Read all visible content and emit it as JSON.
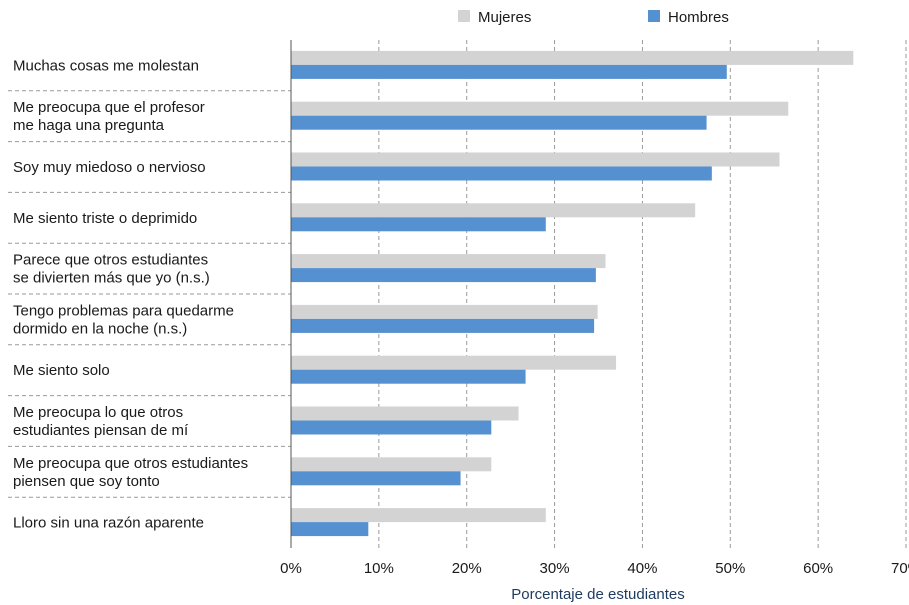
{
  "chart_data": {
    "type": "bar",
    "orientation": "horizontal",
    "categories": [
      [
        "Muchas cosas me molestan"
      ],
      [
        "Me preocupa que el profesor",
        "me haga una pregunta"
      ],
      [
        "Soy muy miedoso o nervioso"
      ],
      [
        "Me siento triste o deprimido"
      ],
      [
        "Parece que otros estudiantes",
        "se divierten más que yo (n.s.)"
      ],
      [
        "Tengo problemas para quedarme",
        "dormido en la noche (n.s.)"
      ],
      [
        "Me siento solo"
      ],
      [
        "Me preocupa lo que otros",
        "estudiantes piensan de mí"
      ],
      [
        "Me preocupa que otros estudiantes",
        "piensen que soy tonto"
      ],
      [
        "Lloro sin una razón aparente"
      ]
    ],
    "series": [
      {
        "name": "Mujeres",
        "color": "#d3d3d3",
        "values": [
          64,
          56.6,
          55.6,
          46,
          35.8,
          34.9,
          37,
          25.9,
          22.8,
          29
        ]
      },
      {
        "name": "Hombres",
        "color": "#5590d0",
        "values": [
          49.6,
          47.3,
          47.9,
          29,
          34.7,
          34.5,
          26.7,
          22.8,
          19.3,
          8.8
        ]
      }
    ],
    "xlim": [
      0,
      70
    ],
    "xticks": [
      "0%",
      "10%",
      "20%",
      "30%",
      "40%",
      "50%",
      "60%",
      "70%"
    ],
    "xlabel": "Porcentaje de estudiantes",
    "legend_position": "top",
    "grid": "vertical-dashed"
  }
}
